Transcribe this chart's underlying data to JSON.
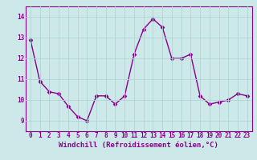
{
  "x": [
    0,
    1,
    2,
    3,
    4,
    5,
    6,
    7,
    8,
    9,
    10,
    11,
    12,
    13,
    14,
    15,
    16,
    17,
    18,
    19,
    20,
    21,
    22,
    23
  ],
  "y": [
    12.9,
    10.9,
    10.4,
    10.3,
    9.7,
    9.2,
    9.0,
    10.2,
    10.2,
    9.8,
    10.2,
    12.2,
    13.4,
    13.9,
    13.5,
    12.0,
    12.0,
    12.2,
    10.2,
    9.8,
    9.9,
    10.0,
    10.3,
    10.2
  ],
  "line_color": "#8B008B",
  "marker_color": "#8B008B",
  "bg_color": "#cce8e8",
  "grid_color": "#b0d4d4",
  "xlabel": "Windchill (Refroidissement éolien,°C)",
  "ylim": [
    8.5,
    14.5
  ],
  "xlim": [
    -0.5,
    23.5
  ],
  "yticks": [
    9,
    10,
    11,
    12,
    13,
    14
  ],
  "xticks": [
    0,
    1,
    2,
    3,
    4,
    5,
    6,
    7,
    8,
    9,
    10,
    11,
    12,
    13,
    14,
    15,
    16,
    17,
    18,
    19,
    20,
    21,
    22,
    23
  ],
  "tick_fontsize": 5.5,
  "xlabel_fontsize": 6.5,
  "line_width": 1.0,
  "marker_size": 2.5
}
